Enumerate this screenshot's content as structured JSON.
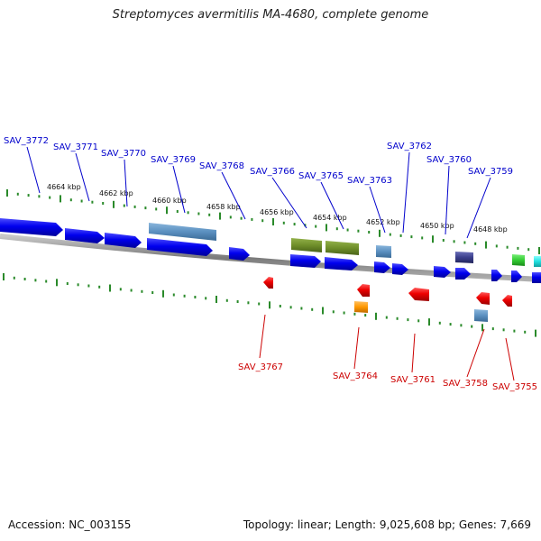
{
  "title": "Streptomyces avermitilis MA-4680, complete genome",
  "accession": "Accession: NC_003155",
  "summary": "Topology: linear; Length: 9,025,608 bp; Genes: 7,669",
  "colors": {
    "forward_gene": "#0000ee",
    "reverse_gene": "#ee0000",
    "forward_label": "#0000cc",
    "reverse_label": "#cc0000",
    "tick": "#2a8a2a",
    "backbone": "#8a8a8a",
    "steel": "#5b90c0",
    "olive": "#6f8f2a",
    "purple": "#3b3f8c",
    "green": "#33cc33",
    "cyan": "#22e0e0",
    "orange": "#ff9900"
  },
  "tick_labels": [
    "4664 kbp",
    "4662 kbp",
    "4660 kbp",
    "4658 kbp",
    "4656 kbp",
    "4654 kbp",
    "4652 kbp",
    "4650 kbp",
    "4648 kbp"
  ],
  "forward_labels": [
    "SAV_3772",
    "SAV_3771",
    "SAV_3770",
    "SAV_3769",
    "SAV_3768",
    "SAV_3766",
    "SAV_3765",
    "SAV_3763",
    "SAV_3762",
    "SAV_3760",
    "SAV_3759"
  ],
  "reverse_labels": [
    "SAV_3767",
    "SAV_3764",
    "SAV_3761",
    "SAV_3758",
    "SAV_3755"
  ]
}
